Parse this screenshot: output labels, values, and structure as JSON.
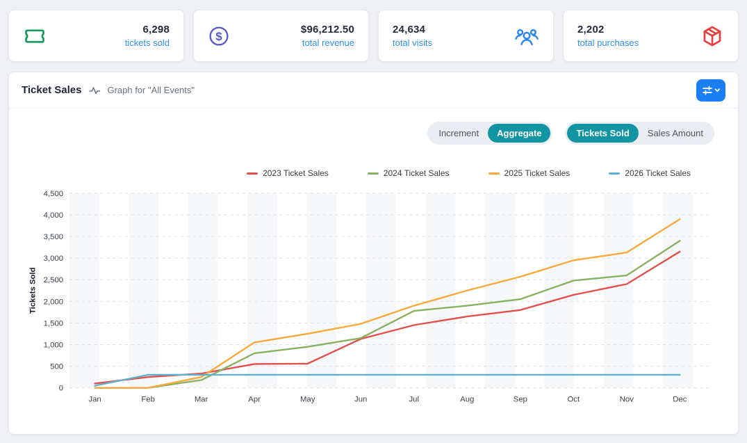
{
  "stats": {
    "label_color": "#2e90fa",
    "cards": [
      {
        "value": "6,298",
        "label": "tickets sold",
        "icon": "ticket-icon",
        "icon_color": "#189a5a",
        "icon_side": "left"
      },
      {
        "value": "$96,212.50",
        "label": "total revenue",
        "icon": "dollar-circle-icon",
        "icon_color": "#5457c9",
        "icon_side": "left"
      },
      {
        "value": "24,634",
        "label": "total visits",
        "icon": "users-icon",
        "icon_color": "#2e86f0",
        "icon_side": "right"
      },
      {
        "value": "2,202",
        "label": "total purchases",
        "icon": "package-icon",
        "icon_color": "#e8403d",
        "icon_side": "right"
      }
    ]
  },
  "chart_section": {
    "title": "Ticket Sales",
    "subtitle": "Graph for \"All Events\"",
    "controls": {
      "active_color": "#1295a3",
      "mode_toggle": {
        "options": [
          "Increment",
          "Aggregate"
        ],
        "active": "Aggregate"
      },
      "metric_toggle": {
        "options": [
          "Tickets Sold",
          "Sales Amount"
        ],
        "active": "Tickets Sold"
      }
    },
    "filter_button": {
      "color": "#1a7ff2",
      "icon": "sliders-icon + chevron-down-icon"
    }
  },
  "chart_data": {
    "type": "line",
    "title": "Ticket Sales",
    "xlabel": "",
    "ylabel": "Tickets Sold",
    "x": [
      "Jan",
      "Feb",
      "Mar",
      "Apr",
      "May",
      "Jun",
      "Jul",
      "Aug",
      "Sep",
      "Oct",
      "Nov",
      "Dec"
    ],
    "series": [
      {
        "name": "2023 Ticket Sales",
        "color": "#e2504d",
        "values": [
          100,
          250,
          330,
          550,
          560,
          1130,
          1450,
          1650,
          1800,
          2150,
          2400,
          3150
        ]
      },
      {
        "name": "2024 Ticket Sales",
        "color": "#87b05f",
        "values": [
          0,
          0,
          180,
          800,
          950,
          1150,
          1780,
          1900,
          2050,
          2480,
          2600,
          3400
        ]
      },
      {
        "name": "2025 Ticket Sales",
        "color": "#f8a93d",
        "values": [
          0,
          0,
          250,
          1050,
          1250,
          1480,
          1900,
          2250,
          2570,
          2950,
          3130,
          3900
        ]
      },
      {
        "name": "2026 Ticket Sales",
        "color": "#5fb0cc",
        "values": [
          50,
          300,
          300,
          300,
          300,
          300,
          300,
          300,
          300,
          300,
          300,
          300
        ]
      }
    ],
    "ylim": [
      0,
      4500
    ],
    "ytick_step": 500,
    "grid": "dashed horizontal, alternating vertical column stripes",
    "legend_position": "top-right"
  }
}
